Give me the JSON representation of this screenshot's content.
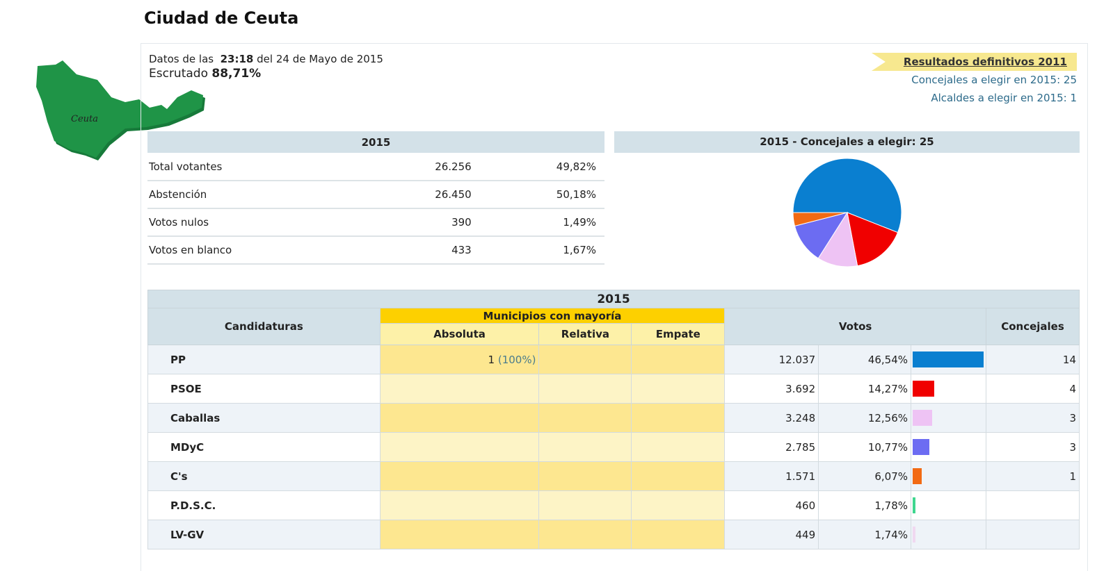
{
  "title": "Ciudad de Ceuta",
  "map": {
    "label": "Ceuta",
    "color": "#1f9447"
  },
  "info": {
    "prefix": "Datos de las",
    "time": "23:18",
    "date": "del 24 de Mayo de 2015",
    "scrutiny_label": "Escrutado",
    "scrutiny": "88,71%"
  },
  "links": {
    "results_2011": "Resultados definitivos 2011",
    "councillors": "Concejales a elegir en 2015: 25",
    "mayors": "Alcaldes a elegir en 2015: 1"
  },
  "summary": {
    "header": "2015",
    "rows": [
      {
        "label": "Total votantes",
        "value": "26.256",
        "pct": "49,82%"
      },
      {
        "label": "Abstención",
        "value": "26.450",
        "pct": "50,18%"
      },
      {
        "label": "Votos nulos",
        "value": "390",
        "pct": "1,49%"
      },
      {
        "label": "Votos en blanco",
        "value": "433",
        "pct": "1,67%"
      }
    ]
  },
  "chart_data": {
    "type": "pie",
    "title": "2015 - Concejales a elegir: 25",
    "categories": [
      "PP",
      "PSOE",
      "Caballas",
      "MDyC",
      "C's"
    ],
    "values": [
      14,
      4,
      3,
      3,
      1
    ],
    "colors": [
      "#0a7fd0",
      "#f00000",
      "#eec3f4",
      "#6c6cf2",
      "#f26a13"
    ]
  },
  "table": {
    "year": "2015",
    "col_candidaturas": "Candidaturas",
    "col_mayoria": "Municipios con mayoría",
    "col_absoluta": "Absoluta",
    "col_relativa": "Relativa",
    "col_empate": "Empate",
    "col_votos": "Votos",
    "col_concejales": "Concejales",
    "rows": [
      {
        "name": "PP",
        "absoluta": "1",
        "absoluta_pct": "(100%)",
        "votes": "12.037",
        "pct": "46,54%",
        "pct_value": 46.54,
        "color": "#0a7fd0",
        "seats": "14"
      },
      {
        "name": "PSOE",
        "votes": "3.692",
        "pct": "14,27%",
        "pct_value": 14.27,
        "color": "#f00000",
        "seats": "4"
      },
      {
        "name": "Caballas",
        "votes": "3.248",
        "pct": "12,56%",
        "pct_value": 12.56,
        "color": "#eec3f4",
        "seats": "3"
      },
      {
        "name": "MDyC",
        "votes": "2.785",
        "pct": "10,77%",
        "pct_value": 10.77,
        "color": "#6c6cf2",
        "seats": "3"
      },
      {
        "name": "C's",
        "votes": "1.571",
        "pct": "6,07%",
        "pct_value": 6.07,
        "color": "#f26a13",
        "seats": "1"
      },
      {
        "name": "P.D.S.C.",
        "votes": "460",
        "pct": "1,78%",
        "pct_value": 1.78,
        "color": "#3fd68f",
        "seats": ""
      },
      {
        "name": "LV-GV",
        "votes": "449",
        "pct": "1,74%",
        "pct_value": 1.74,
        "color": "#f0d8f0",
        "seats": ""
      }
    ]
  }
}
